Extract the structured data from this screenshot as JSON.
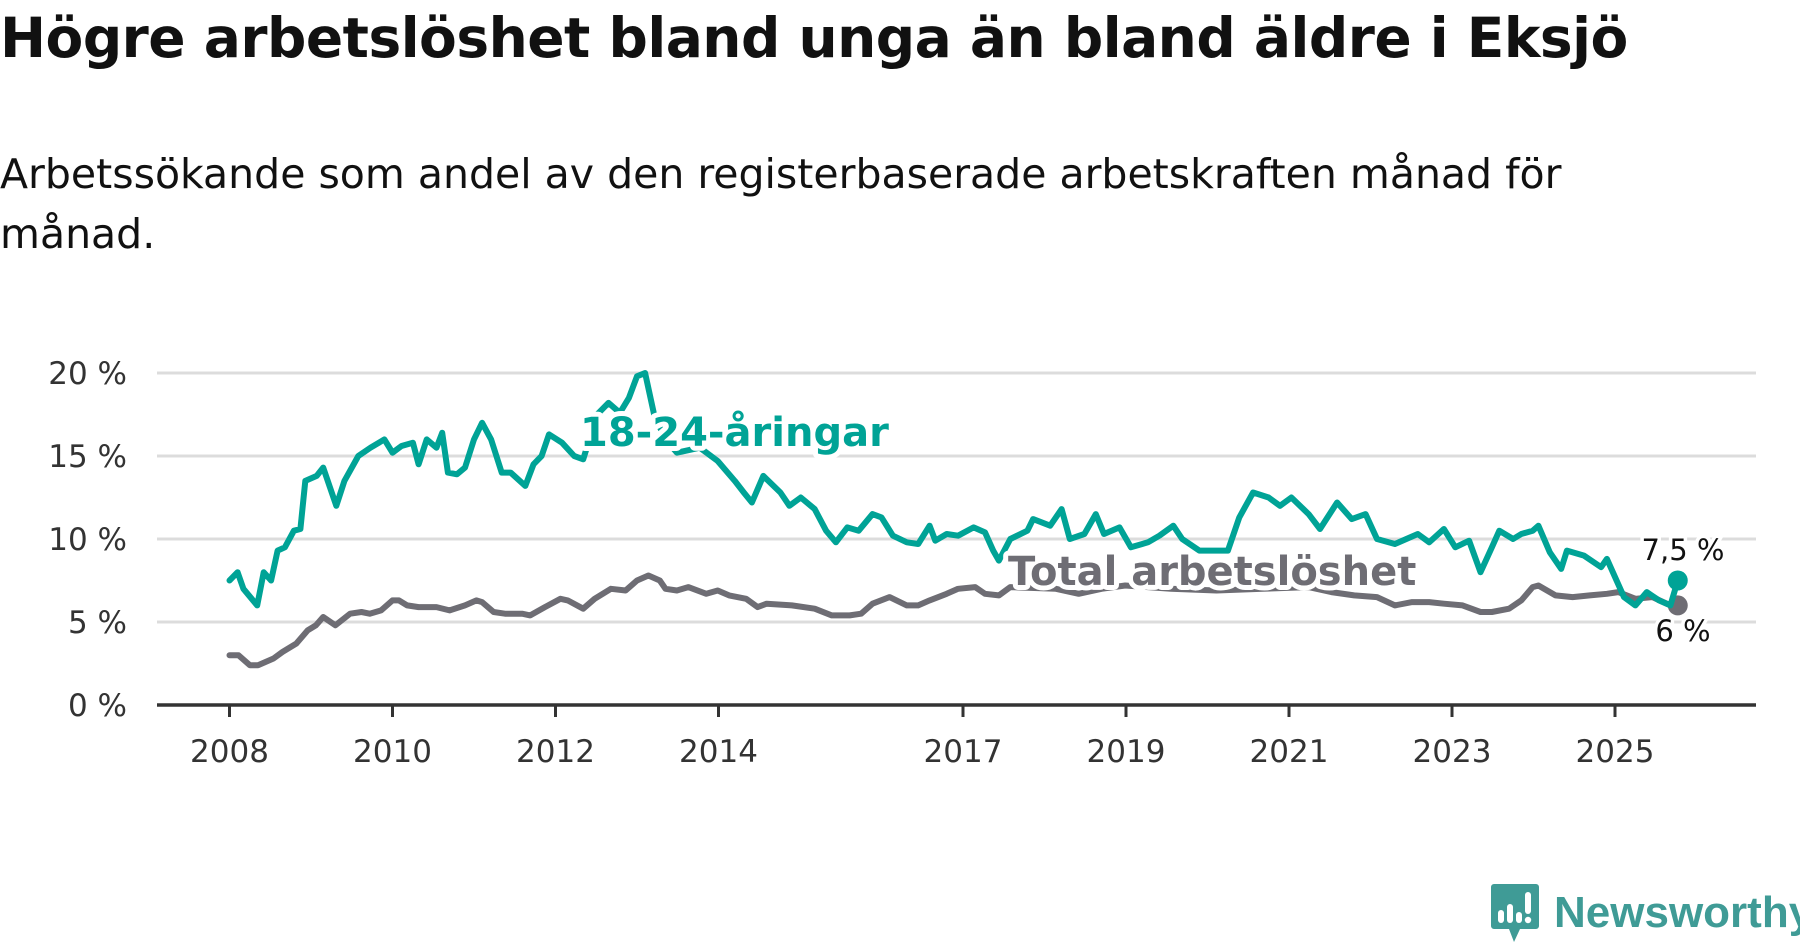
{
  "title": "Högre arbetslöshet bland unga än bland äldre i Eksjö",
  "subtitle": "Arbetssökande som andel av den registerbaserade arbetskraften månad för månad.",
  "logo": {
    "text": "Newsworthy",
    "icon": "bar-chart-speech-icon",
    "color": "#3f9b96"
  },
  "chart_data": {
    "type": "line",
    "title": "Högre arbetslöshet bland unga än bland äldre i Eksjö",
    "xlabel": "",
    "ylabel": "",
    "xlim": [
      2007.1,
      2027.6
    ],
    "ylim": [
      0,
      20
    ],
    "grid": true,
    "x_ticks": [
      2008,
      2010,
      2012,
      2014,
      2017,
      2019,
      2021,
      2023,
      2025
    ],
    "y_ticks": [
      {
        "v": 0,
        "label": "0 %"
      },
      {
        "v": 5,
        "label": "5 %"
      },
      {
        "v": 10,
        "label": "10 %"
      },
      {
        "v": 15,
        "label": "15 %"
      },
      {
        "v": 20,
        "label": "20 %"
      }
    ],
    "series": [
      {
        "name": "18-24-åringar",
        "color": "#00a396",
        "end_label": "7,5 %",
        "points": [
          [
            2008.0,
            7.5
          ],
          [
            2008.1,
            8
          ],
          [
            2008.17,
            7
          ],
          [
            2008.34,
            6
          ],
          [
            2008.42,
            8
          ],
          [
            2008.51,
            7.5
          ],
          [
            2008.59,
            9.3
          ],
          [
            2008.68,
            9.5
          ],
          [
            2008.79,
            10.5
          ],
          [
            2008.87,
            10.6
          ],
          [
            2008.93,
            13.5
          ],
          [
            2009.07,
            13.8
          ],
          [
            2009.15,
            14.3
          ],
          [
            2009.31,
            12
          ],
          [
            2009.41,
            13.5
          ],
          [
            2009.58,
            15
          ],
          [
            2009.73,
            15.5
          ],
          [
            2009.9,
            16
          ],
          [
            2010.0,
            15.2
          ],
          [
            2010.11,
            15.6
          ],
          [
            2010.25,
            15.8
          ],
          [
            2010.32,
            14.5
          ],
          [
            2010.42,
            16
          ],
          [
            2010.54,
            15.5
          ],
          [
            2010.61,
            16.4
          ],
          [
            2010.68,
            14
          ],
          [
            2010.79,
            13.9
          ],
          [
            2010.89,
            14.3
          ],
          [
            2011.0,
            16
          ],
          [
            2011.1,
            17
          ],
          [
            2011.21,
            16
          ],
          [
            2011.34,
            14
          ],
          [
            2011.45,
            14
          ],
          [
            2011.63,
            13.2
          ],
          [
            2011.73,
            14.5
          ],
          [
            2011.83,
            15
          ],
          [
            2011.92,
            16.3
          ],
          [
            2012.08,
            15.8
          ],
          [
            2012.23,
            15
          ],
          [
            2012.34,
            14.8
          ],
          [
            2012.51,
            17.5
          ],
          [
            2012.65,
            18.2
          ],
          [
            2012.79,
            17.6
          ],
          [
            2012.9,
            18.5
          ],
          [
            2013.0,
            19.8
          ],
          [
            2013.1,
            20
          ],
          [
            2013.21,
            17.5
          ],
          [
            2013.35,
            16
          ],
          [
            2013.49,
            15.2
          ],
          [
            2013.77,
            15.5
          ],
          [
            2013.99,
            14.7
          ],
          [
            2014.2,
            13.5
          ],
          [
            2014.31,
            12.8
          ],
          [
            2014.41,
            12.2
          ],
          [
            2014.55,
            13.8
          ],
          [
            2014.76,
            12.8
          ],
          [
            2014.87,
            12
          ],
          [
            2015.01,
            12.5
          ],
          [
            2015.18,
            11.8
          ],
          [
            2015.32,
            10.5
          ],
          [
            2015.44,
            9.8
          ],
          [
            2015.58,
            10.7
          ],
          [
            2015.72,
            10.5
          ],
          [
            2015.89,
            11.5
          ],
          [
            2016.0,
            11.3
          ],
          [
            2016.14,
            10.2
          ],
          [
            2016.31,
            9.8
          ],
          [
            2016.45,
            9.7
          ],
          [
            2016.59,
            10.8
          ],
          [
            2016.66,
            9.9
          ],
          [
            2016.8,
            10.3
          ],
          [
            2016.94,
            10.2
          ],
          [
            2017.13,
            10.7
          ],
          [
            2017.27,
            10.4
          ],
          [
            2017.37,
            9.3
          ],
          [
            2017.44,
            8.7
          ],
          [
            2017.58,
            10
          ],
          [
            2017.79,
            10.5
          ],
          [
            2017.86,
            11.2
          ],
          [
            2018.07,
            10.8
          ],
          [
            2018.21,
            11.8
          ],
          [
            2018.31,
            10
          ],
          [
            2018.49,
            10.3
          ],
          [
            2018.63,
            11.5
          ],
          [
            2018.73,
            10.3
          ],
          [
            2018.92,
            10.7
          ],
          [
            2019.06,
            9.5
          ],
          [
            2019.27,
            9.8
          ],
          [
            2019.41,
            10.2
          ],
          [
            2019.58,
            10.8
          ],
          [
            2019.69,
            10
          ],
          [
            2019.9,
            9.3
          ],
          [
            2020.25,
            9.3
          ],
          [
            2020.39,
            11.3
          ],
          [
            2020.56,
            12.8
          ],
          [
            2020.75,
            12.5
          ],
          [
            2020.89,
            12
          ],
          [
            2021.03,
            12.5
          ],
          [
            2021.24,
            11.5
          ],
          [
            2021.38,
            10.6
          ],
          [
            2021.59,
            12.2
          ],
          [
            2021.77,
            11.2
          ],
          [
            2021.94,
            11.5
          ],
          [
            2022.08,
            10
          ],
          [
            2022.3,
            9.7
          ],
          [
            2022.58,
            10.3
          ],
          [
            2022.72,
            9.8
          ],
          [
            2022.9,
            10.6
          ],
          [
            2023.04,
            9.5
          ],
          [
            2023.21,
            9.9
          ],
          [
            2023.35,
            8
          ],
          [
            2023.49,
            9.5
          ],
          [
            2023.58,
            10.5
          ],
          [
            2023.75,
            10
          ],
          [
            2023.85,
            10.3
          ],
          [
            2023.99,
            10.5
          ],
          [
            2024.06,
            10.8
          ],
          [
            2024.2,
            9.2
          ],
          [
            2024.34,
            8.2
          ],
          [
            2024.41,
            9.3
          ],
          [
            2024.62,
            9
          ],
          [
            2024.83,
            8.3
          ],
          [
            2024.9,
            8.8
          ],
          [
            2025.11,
            6.5
          ],
          [
            2025.25,
            6
          ],
          [
            2025.39,
            6.8
          ],
          [
            2025.54,
            6.3
          ],
          [
            2025.68,
            6
          ],
          [
            2025.77,
            7.5
          ]
        ]
      },
      {
        "name": "Total arbetslöshet",
        "color": "#6e6d74",
        "end_label": "6 %",
        "points": [
          [
            2008.0,
            3
          ],
          [
            2008.11,
            3
          ],
          [
            2008.25,
            2.4
          ],
          [
            2008.35,
            2.4
          ],
          [
            2008.54,
            2.8
          ],
          [
            2008.65,
            3.2
          ],
          [
            2008.82,
            3.7
          ],
          [
            2008.96,
            4.5
          ],
          [
            2009.06,
            4.8
          ],
          [
            2009.15,
            5.3
          ],
          [
            2009.3,
            4.8
          ],
          [
            2009.48,
            5.5
          ],
          [
            2009.62,
            5.6
          ],
          [
            2009.72,
            5.5
          ],
          [
            2009.86,
            5.7
          ],
          [
            2010.0,
            6.3
          ],
          [
            2010.08,
            6.3
          ],
          [
            2010.18,
            6
          ],
          [
            2010.32,
            5.9
          ],
          [
            2010.54,
            5.9
          ],
          [
            2010.7,
            5.7
          ],
          [
            2010.89,
            6
          ],
          [
            2011.03,
            6.3
          ],
          [
            2011.1,
            6.2
          ],
          [
            2011.24,
            5.6
          ],
          [
            2011.38,
            5.5
          ],
          [
            2011.59,
            5.5
          ],
          [
            2011.69,
            5.4
          ],
          [
            2011.87,
            5.9
          ],
          [
            2012.06,
            6.4
          ],
          [
            2012.15,
            6.3
          ],
          [
            2012.34,
            5.8
          ],
          [
            2012.48,
            6.4
          ],
          [
            2012.68,
            7
          ],
          [
            2012.86,
            6.9
          ],
          [
            2013.0,
            7.5
          ],
          [
            2013.14,
            7.8
          ],
          [
            2013.28,
            7.5
          ],
          [
            2013.35,
            7
          ],
          [
            2013.49,
            6.9
          ],
          [
            2013.63,
            7.1
          ],
          [
            2013.85,
            6.7
          ],
          [
            2013.99,
            6.9
          ],
          [
            2014.13,
            6.6
          ],
          [
            2014.34,
            6.4
          ],
          [
            2014.48,
            5.9
          ],
          [
            2014.59,
            6.1
          ],
          [
            2014.9,
            6
          ],
          [
            2015.18,
            5.8
          ],
          [
            2015.39,
            5.4
          ],
          [
            2015.61,
            5.4
          ],
          [
            2015.75,
            5.5
          ],
          [
            2015.89,
            6.1
          ],
          [
            2016.1,
            6.5
          ],
          [
            2016.31,
            6
          ],
          [
            2016.45,
            6
          ],
          [
            2016.59,
            6.3
          ],
          [
            2016.8,
            6.7
          ],
          [
            2016.94,
            7
          ],
          [
            2017.15,
            7.1
          ],
          [
            2017.27,
            6.7
          ],
          [
            2017.44,
            6.6
          ],
          [
            2017.58,
            7.1
          ],
          [
            2018.14,
            7
          ],
          [
            2018.42,
            6.7
          ],
          [
            2018.7,
            7
          ],
          [
            2018.99,
            7.2
          ],
          [
            2019.27,
            7.1
          ],
          [
            2019.55,
            7
          ],
          [
            2020.11,
            6.9
          ],
          [
            2020.68,
            7
          ],
          [
            2021.24,
            7.1
          ],
          [
            2021.52,
            6.8
          ],
          [
            2021.8,
            6.6
          ],
          [
            2022.08,
            6.5
          ],
          [
            2022.3,
            6
          ],
          [
            2022.51,
            6.2
          ],
          [
            2022.72,
            6.2
          ],
          [
            2022.9,
            6.1
          ],
          [
            2023.13,
            6
          ],
          [
            2023.35,
            5.6
          ],
          [
            2023.49,
            5.6
          ],
          [
            2023.7,
            5.8
          ],
          [
            2023.85,
            6.3
          ],
          [
            2023.99,
            7.1
          ],
          [
            2024.06,
            7.2
          ],
          [
            2024.27,
            6.6
          ],
          [
            2024.48,
            6.5
          ],
          [
            2024.69,
            6.6
          ],
          [
            2024.9,
            6.7
          ],
          [
            2025.04,
            6.8
          ],
          [
            2025.25,
            6.4
          ],
          [
            2025.46,
            6.5
          ],
          [
            2025.68,
            6
          ],
          [
            2025.77,
            6
          ]
        ]
      }
    ]
  }
}
